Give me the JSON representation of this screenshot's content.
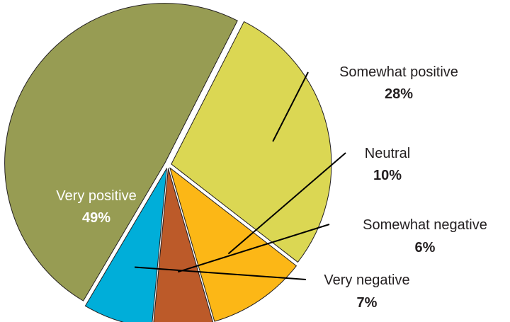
{
  "chart_data": {
    "type": "pie",
    "title": "",
    "slices": [
      {
        "label": "Somewhat positive",
        "value": 28,
        "value_label": "28%",
        "color": "#dbd753"
      },
      {
        "label": "Neutral",
        "value": 10,
        "value_label": "10%",
        "color": "#fcb716"
      },
      {
        "label": "Somewhat negative",
        "value": 6,
        "value_label": "6%",
        "color": "#bc5a29"
      },
      {
        "label": "Very negative",
        "value": 7,
        "value_label": "7%",
        "color": "#00aed9"
      },
      {
        "label": "Very positive",
        "value": 49,
        "value_label": "49%",
        "color": "#979c53"
      }
    ],
    "legend": "none"
  }
}
